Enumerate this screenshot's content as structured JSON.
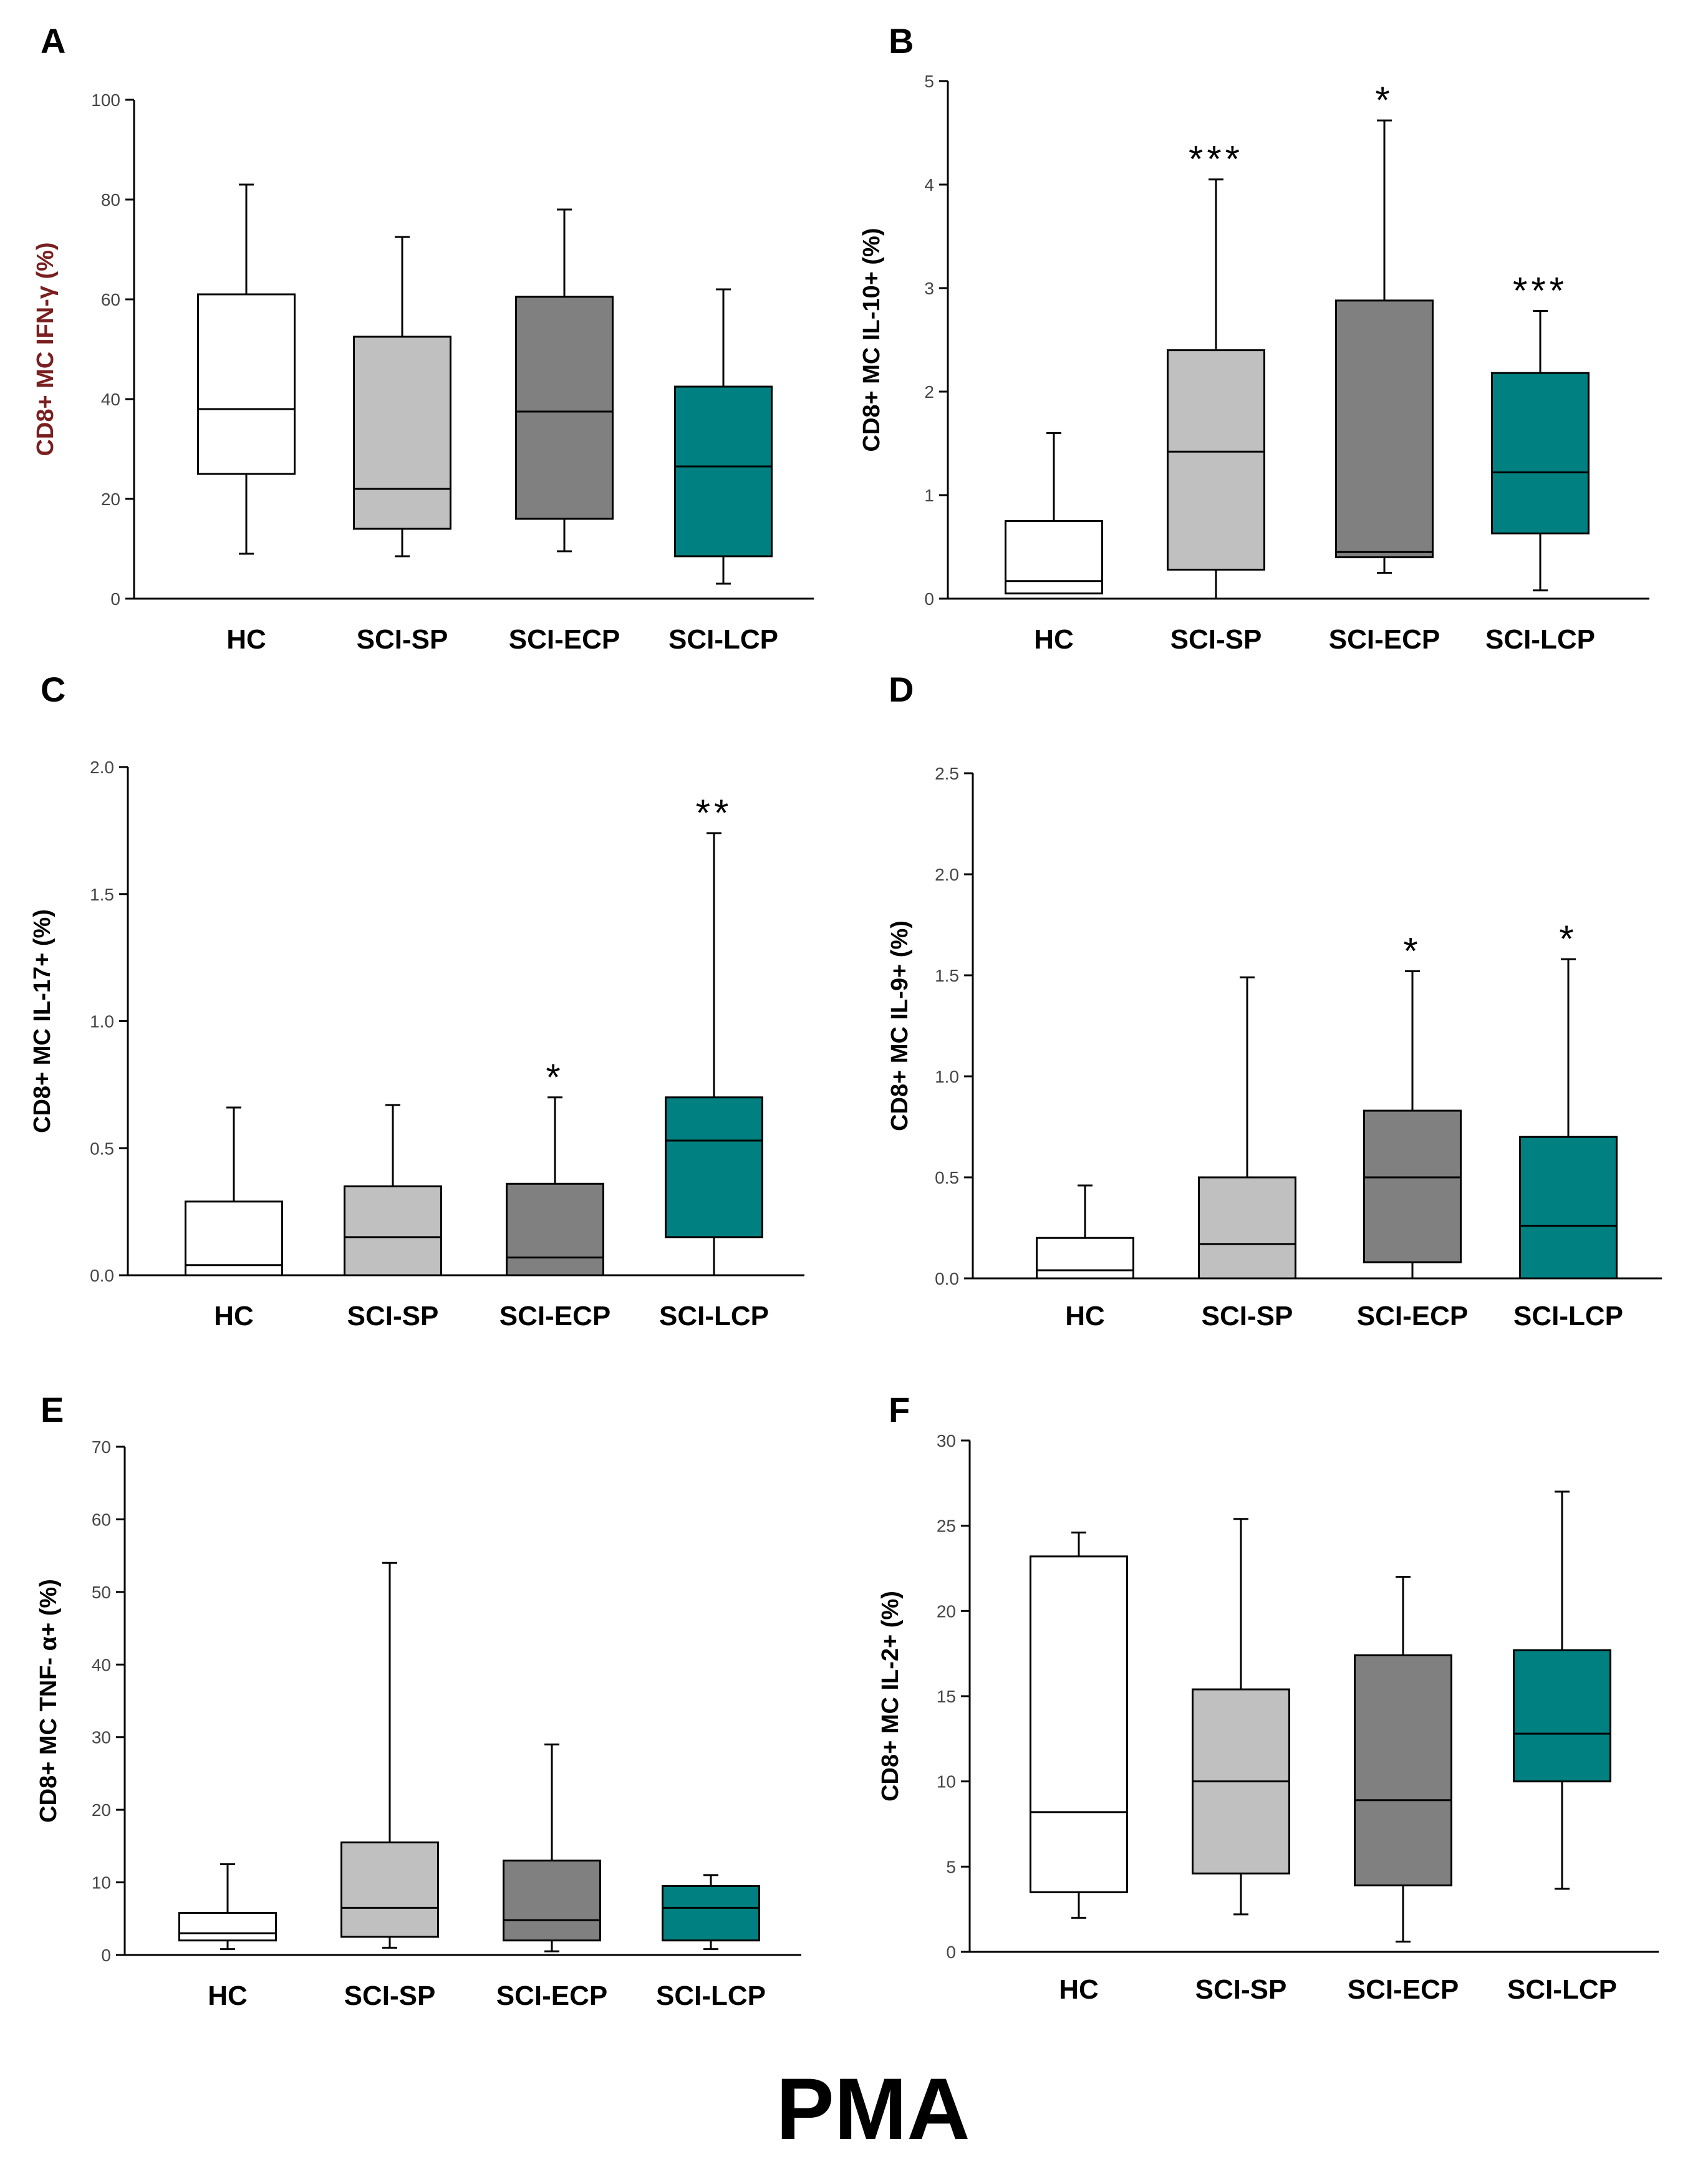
{
  "footer_label": "PMA",
  "colors": {
    "HC": "#ffffff",
    "SCI-SP": "#c0c0c0",
    "SCI-ECP": "#808080",
    "SCI-LCP": "#008080"
  },
  "chart_data": [
    {
      "type": "boxplot",
      "panel": "A",
      "ylabel": "CD8+ MC IFN-γ (%)",
      "ylim": [
        0,
        100
      ],
      "yticks": [
        0,
        20,
        40,
        60,
        80,
        100
      ],
      "tick_decimals": 0,
      "categories": [
        "HC",
        "SCI-SP",
        "SCI-ECP",
        "SCI-LCP"
      ],
      "boxes": [
        {
          "min": 9,
          "q1": 25,
          "median": 38,
          "q3": 61,
          "max": 83,
          "sig": ""
        },
        {
          "min": 8.5,
          "q1": 14,
          "median": 22,
          "q3": 52.5,
          "max": 72.5,
          "sig": ""
        },
        {
          "min": 9.5,
          "q1": 16,
          "median": 37.5,
          "q3": 60.5,
          "max": 78,
          "sig": ""
        },
        {
          "min": 3,
          "q1": 8.5,
          "median": 26.5,
          "q3": 42.5,
          "max": 62,
          "sig": ""
        }
      ]
    },
    {
      "type": "boxplot",
      "panel": "B",
      "ylabel": "CD8+ MC IL-10+ (%)",
      "ylim": [
        0,
        5
      ],
      "yticks": [
        0,
        1,
        2,
        3,
        4,
        5
      ],
      "tick_decimals": 0,
      "categories": [
        "HC",
        "SCI-SP",
        "SCI-ECP",
        "SCI-LCP"
      ],
      "boxes": [
        {
          "min": 0.05,
          "q1": 0.05,
          "median": 0.17,
          "q3": 0.75,
          "max": 1.6,
          "sig": ""
        },
        {
          "min": 0,
          "q1": 0.28,
          "median": 1.42,
          "q3": 2.4,
          "max": 4.05,
          "sig": "***"
        },
        {
          "min": 0.25,
          "q1": 0.4,
          "median": 0.45,
          "q3": 2.88,
          "max": 4.62,
          "sig": "*"
        },
        {
          "min": 0.08,
          "q1": 0.63,
          "median": 1.22,
          "q3": 2.18,
          "max": 2.78,
          "sig": "***"
        }
      ]
    },
    {
      "type": "boxplot",
      "panel": "C",
      "ylabel": "CD8+ MC IL-17+ (%)",
      "ylim": [
        0,
        2.0
      ],
      "yticks": [
        0,
        0.5,
        1.0,
        1.5,
        2.0
      ],
      "tick_decimals": 1,
      "categories": [
        "HC",
        "SCI-SP",
        "SCI-ECP",
        "SCI-LCP"
      ],
      "boxes": [
        {
          "min": 0,
          "q1": 0,
          "median": 0.04,
          "q3": 0.29,
          "max": 0.66,
          "sig": ""
        },
        {
          "min": 0,
          "q1": 0,
          "median": 0.15,
          "q3": 0.35,
          "max": 0.67,
          "sig": ""
        },
        {
          "min": 0,
          "q1": 0,
          "median": 0.07,
          "q3": 0.36,
          "max": 0.7,
          "sig": "*"
        },
        {
          "min": 0,
          "q1": 0.15,
          "median": 0.53,
          "q3": 0.7,
          "max": 1.74,
          "sig": "**"
        }
      ]
    },
    {
      "type": "boxplot",
      "panel": "D",
      "ylabel": "CD8+ MC IL-9+ (%)",
      "ylim": [
        0,
        2.5
      ],
      "yticks": [
        0,
        0.5,
        1.0,
        1.5,
        2.0,
        2.5
      ],
      "tick_decimals": 1,
      "categories": [
        "HC",
        "SCI-SP",
        "SCI-ECP",
        "SCI-LCP"
      ],
      "boxes": [
        {
          "min": 0,
          "q1": 0,
          "median": 0.04,
          "q3": 0.2,
          "max": 0.46,
          "sig": ""
        },
        {
          "min": 0,
          "q1": 0,
          "median": 0.17,
          "q3": 0.5,
          "max": 1.49,
          "sig": ""
        },
        {
          "min": 0,
          "q1": 0.08,
          "median": 0.5,
          "q3": 0.83,
          "max": 1.52,
          "sig": "*"
        },
        {
          "min": 0,
          "q1": 0,
          "median": 0.26,
          "q3": 0.7,
          "max": 1.58,
          "sig": "*"
        }
      ]
    },
    {
      "type": "boxplot",
      "panel": "E",
      "ylabel": "CD8+ MC TNF- α+ (%)",
      "ylim": [
        0,
        70
      ],
      "yticks": [
        0,
        10,
        20,
        30,
        40,
        50,
        60,
        70
      ],
      "tick_decimals": 0,
      "categories": [
        "HC",
        "SCI-SP",
        "SCI-ECP",
        "SCI-LCP"
      ],
      "boxes": [
        {
          "min": 0.8,
          "q1": 2,
          "median": 3,
          "q3": 5.8,
          "max": 12.5,
          "sig": ""
        },
        {
          "min": 1,
          "q1": 2.5,
          "median": 6.5,
          "q3": 15.5,
          "max": 54,
          "sig": ""
        },
        {
          "min": 0.5,
          "q1": 2,
          "median": 4.8,
          "q3": 13,
          "max": 29,
          "sig": ""
        },
        {
          "min": 0.8,
          "q1": 2,
          "median": 6.5,
          "q3": 9.5,
          "max": 11,
          "sig": ""
        }
      ]
    },
    {
      "type": "boxplot",
      "panel": "F",
      "ylabel": "CD8+ MC IL-2+ (%)",
      "ylim": [
        0,
        30
      ],
      "yticks": [
        0,
        5,
        10,
        15,
        20,
        25,
        30
      ],
      "tick_decimals": 0,
      "categories": [
        "HC",
        "SCI-SP",
        "SCI-ECP",
        "SCI-LCP"
      ],
      "boxes": [
        {
          "min": 2,
          "q1": 3.5,
          "median": 8.2,
          "q3": 23.2,
          "max": 24.6,
          "sig": ""
        },
        {
          "min": 2.2,
          "q1": 4.6,
          "median": 10,
          "q3": 15.4,
          "max": 25.4,
          "sig": ""
        },
        {
          "min": 0.6,
          "q1": 3.9,
          "median": 8.9,
          "q3": 17.4,
          "max": 22,
          "sig": ""
        },
        {
          "min": 3.7,
          "q1": 10,
          "median": 12.8,
          "q3": 17.7,
          "max": 27,
          "sig": ""
        }
      ]
    }
  ]
}
